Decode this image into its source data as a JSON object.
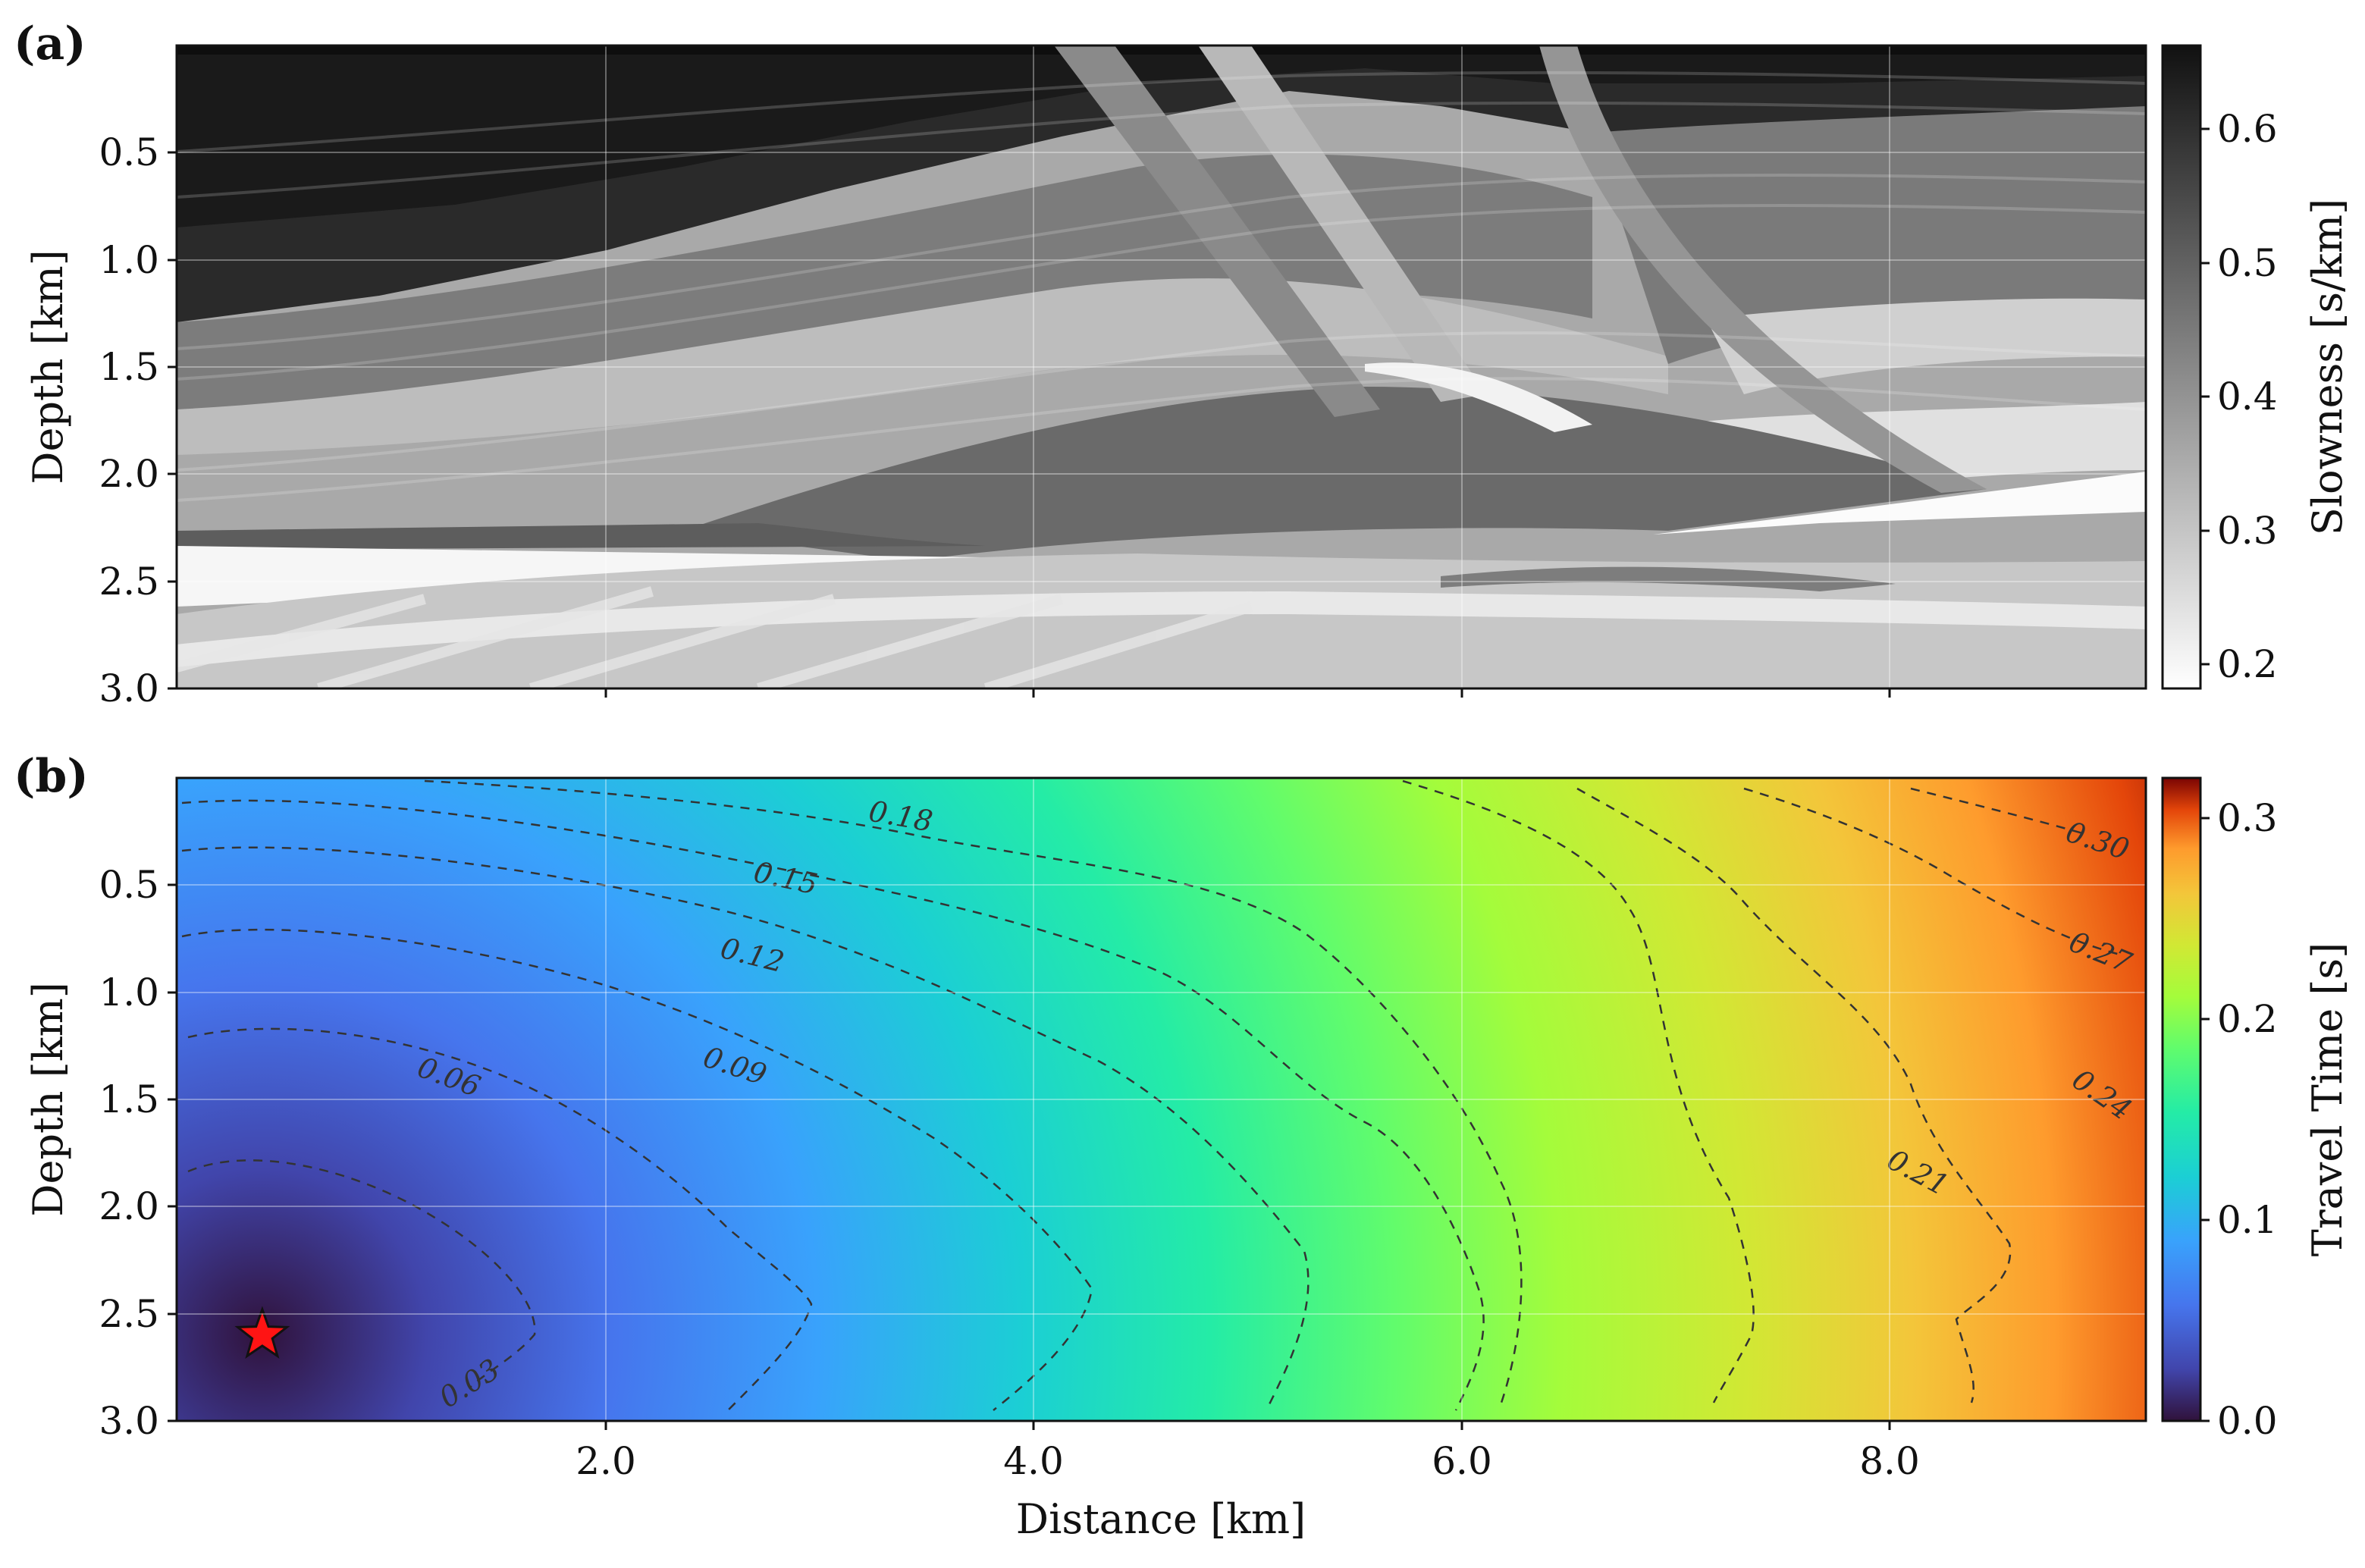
{
  "chart_data": [
    {
      "panel_label": "(a)",
      "type": "heatmap",
      "title": "",
      "xlabel": "",
      "ylabel": "Depth [km]",
      "xlim": [
        0,
        9.2
      ],
      "ylim": [
        3.0,
        0.0
      ],
      "y_ticks": [
        "0.5",
        "1.0",
        "1.5",
        "2.0",
        "2.5",
        "3.0"
      ],
      "colormap": "gray_r",
      "colorbar": {
        "label": "Slowness [s/km]",
        "range": [
          0.18,
          0.66
        ],
        "ticks": [
          "0.2",
          "0.3",
          "0.4",
          "0.5",
          "0.6"
        ]
      },
      "grid": true
    },
    {
      "panel_label": "(b)",
      "type": "heatmap",
      "title": "",
      "xlabel": "Distance [km]",
      "ylabel": "Depth [km]",
      "xlim": [
        0,
        9.2
      ],
      "ylim": [
        3.0,
        0.0
      ],
      "x_ticks": [
        "2.0",
        "4.0",
        "6.0",
        "8.0"
      ],
      "y_ticks": [
        "0.5",
        "1.0",
        "1.5",
        "2.0",
        "2.5",
        "3.0"
      ],
      "colormap": "turbo",
      "colorbar": {
        "label": "Travel Time [s]",
        "range": [
          0.0,
          0.32
        ],
        "ticks": [
          "0.0",
          "0.1",
          "0.2",
          "0.3"
        ]
      },
      "source": {
        "x": 0.4,
        "y": 2.6,
        "marker": "red star"
      },
      "contour_levels": [
        "0.03",
        "0.06",
        "0.09",
        "0.12",
        "0.15",
        "0.18",
        "0.21",
        "0.24",
        "0.27",
        "0.30"
      ],
      "grid": true
    }
  ]
}
